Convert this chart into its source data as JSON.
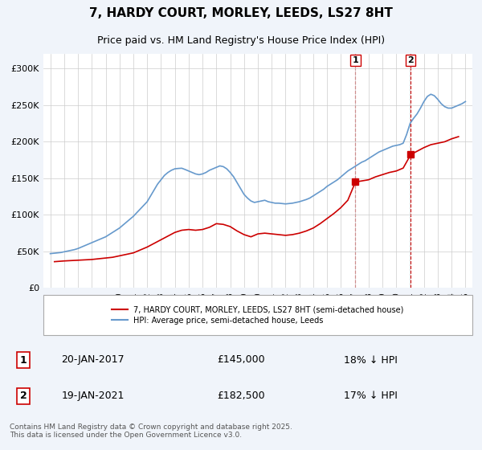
{
  "title": "7, HARDY COURT, MORLEY, LEEDS, LS27 8HT",
  "subtitle": "Price paid vs. HM Land Registry's House Price Index (HPI)",
  "title_fontsize": 11,
  "subtitle_fontsize": 9,
  "xlabel": "",
  "ylabel": "",
  "ylim": [
    0,
    320000
  ],
  "yticks": [
    0,
    50000,
    100000,
    150000,
    200000,
    250000,
    300000
  ],
  "ytick_labels": [
    "£0",
    "£50K",
    "£100K",
    "£150K",
    "£200K",
    "£250K",
    "£300K"
  ],
  "background_color": "#f0f4fa",
  "plot_bg_color": "#ffffff",
  "hpi_color": "#6699cc",
  "price_color": "#cc0000",
  "dashed_color": "#cc0000",
  "marker1_year": 2017.05,
  "marker2_year": 2021.05,
  "price1": 145000,
  "price2": 182500,
  "label1_date": "20-JAN-2017",
  "label2_date": "19-JAN-2021",
  "label1_price": "£145,000",
  "label2_price": "£182,500",
  "label1_hpi": "18% ↓ HPI",
  "label2_hpi": "17% ↓ HPI",
  "legend_line1": "7, HARDY COURT, MORLEY, LEEDS, LS27 8HT (semi-detached house)",
  "legend_line2": "HPI: Average price, semi-detached house, Leeds",
  "footer": "Contains HM Land Registry data © Crown copyright and database right 2025.\nThis data is licensed under the Open Government Licence v3.0.",
  "hpi_years": [
    1995.0,
    1995.25,
    1995.5,
    1995.75,
    1996.0,
    1996.25,
    1996.5,
    1996.75,
    1997.0,
    1997.25,
    1997.5,
    1997.75,
    1998.0,
    1998.25,
    1998.5,
    1998.75,
    1999.0,
    1999.25,
    1999.5,
    1999.75,
    2000.0,
    2000.25,
    2000.5,
    2000.75,
    2001.0,
    2001.25,
    2001.5,
    2001.75,
    2002.0,
    2002.25,
    2002.5,
    2002.75,
    2003.0,
    2003.25,
    2003.5,
    2003.75,
    2004.0,
    2004.25,
    2004.5,
    2004.75,
    2005.0,
    2005.25,
    2005.5,
    2005.75,
    2006.0,
    2006.25,
    2006.5,
    2006.75,
    2007.0,
    2007.25,
    2007.5,
    2007.75,
    2008.0,
    2008.25,
    2008.5,
    2008.75,
    2009.0,
    2009.25,
    2009.5,
    2009.75,
    2010.0,
    2010.25,
    2010.5,
    2010.75,
    2011.0,
    2011.25,
    2011.5,
    2011.75,
    2012.0,
    2012.25,
    2012.5,
    2012.75,
    2013.0,
    2013.25,
    2013.5,
    2013.75,
    2014.0,
    2014.25,
    2014.5,
    2014.75,
    2015.0,
    2015.25,
    2015.5,
    2015.75,
    2016.0,
    2016.25,
    2016.5,
    2016.75,
    2017.0,
    2017.25,
    2017.5,
    2017.75,
    2018.0,
    2018.25,
    2018.5,
    2018.75,
    2019.0,
    2019.25,
    2019.5,
    2019.75,
    2020.0,
    2020.25,
    2020.5,
    2020.75,
    2021.0,
    2021.25,
    2021.5,
    2021.75,
    2022.0,
    2022.25,
    2022.5,
    2022.75,
    2023.0,
    2023.25,
    2023.5,
    2023.75,
    2024.0,
    2024.25,
    2024.5,
    2024.75,
    2025.0
  ],
  "hpi_values": [
    47000,
    47500,
    48000,
    48500,
    49500,
    50500,
    51500,
    52500,
    54000,
    56000,
    58000,
    60000,
    62000,
    64000,
    66000,
    68000,
    70000,
    73000,
    76000,
    79000,
    82000,
    86000,
    90000,
    94000,
    98000,
    103000,
    108000,
    113000,
    118000,
    126000,
    134000,
    142000,
    148000,
    154000,
    158000,
    161000,
    163000,
    163500,
    163800,
    162000,
    160000,
    158000,
    156000,
    155000,
    156000,
    158000,
    161000,
    163000,
    165000,
    167000,
    166000,
    163000,
    158000,
    152000,
    144000,
    136000,
    128000,
    123000,
    119000,
    117000,
    118000,
    119000,
    120000,
    118000,
    117000,
    116000,
    116000,
    115500,
    115000,
    115500,
    116000,
    117000,
    118000,
    119500,
    121000,
    123000,
    126000,
    129000,
    132000,
    135000,
    139000,
    142000,
    145000,
    148000,
    152000,
    156000,
    160000,
    163000,
    166000,
    169000,
    172000,
    174000,
    177000,
    180000,
    183000,
    186000,
    188000,
    190000,
    192000,
    194000,
    195000,
    196000,
    198000,
    210000,
    225000,
    232000,
    238000,
    246000,
    255000,
    262000,
    265000,
    263000,
    258000,
    252000,
    248000,
    246000,
    246000,
    248000,
    250000,
    252000,
    255000
  ],
  "price_years": [
    1995.3,
    1996.0,
    1996.5,
    1997.0,
    1997.5,
    1998.0,
    1998.5,
    1999.0,
    1999.5,
    2000.0,
    2000.5,
    2001.0,
    2001.5,
    2002.0,
    2002.5,
    2003.0,
    2003.5,
    2004.0,
    2004.5,
    2005.0,
    2005.5,
    2006.0,
    2006.5,
    2007.0,
    2007.5,
    2008.0,
    2008.5,
    2009.0,
    2009.5,
    2010.0,
    2010.5,
    2011.0,
    2011.5,
    2012.0,
    2012.5,
    2013.0,
    2013.5,
    2014.0,
    2014.5,
    2015.0,
    2015.5,
    2016.0,
    2016.5,
    2017.05,
    2018.0,
    2018.5,
    2019.0,
    2019.5,
    2020.0,
    2020.5,
    2021.05,
    2022.0,
    2022.5,
    2023.0,
    2023.5,
    2024.0,
    2024.5
  ],
  "price_values": [
    36000,
    37000,
    37500,
    38000,
    38500,
    39000,
    40000,
    41000,
    42000,
    44000,
    46000,
    48000,
    52000,
    56000,
    61000,
    66000,
    71000,
    76000,
    79000,
    80000,
    79000,
    80000,
    83000,
    88000,
    87000,
    84000,
    78000,
    73000,
    70000,
    74000,
    75000,
    74000,
    73000,
    72000,
    73000,
    75000,
    78000,
    82000,
    88000,
    95000,
    102000,
    110000,
    120000,
    145000,
    148000,
    152000,
    155000,
    158000,
    160000,
    164000,
    182500,
    192000,
    196000,
    198000,
    200000,
    204000,
    207000
  ],
  "xtick_years": [
    1995,
    1996,
    1997,
    1998,
    1999,
    2000,
    2001,
    2002,
    2003,
    2004,
    2005,
    2006,
    2007,
    2008,
    2009,
    2010,
    2011,
    2012,
    2013,
    2014,
    2015,
    2016,
    2017,
    2018,
    2019,
    2020,
    2021,
    2022,
    2023,
    2024,
    2025
  ]
}
